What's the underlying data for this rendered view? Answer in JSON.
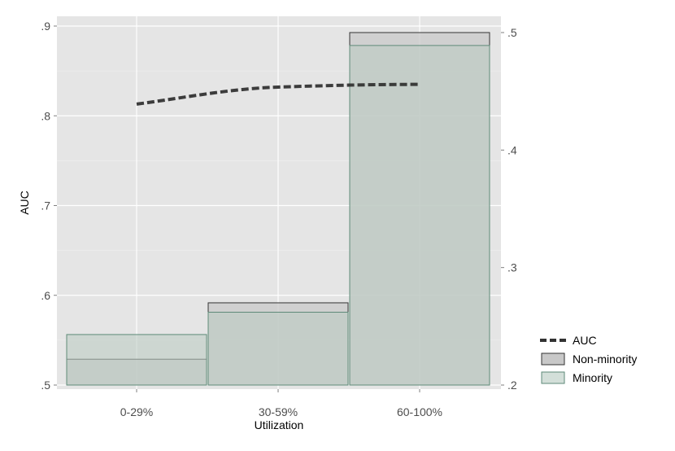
{
  "chart_data": {
    "type": "bar",
    "title": "",
    "xlabel": "Utilization",
    "ylabel": "AUC",
    "categories": [
      "0-29%",
      "30-59%",
      "60-100%"
    ],
    "y_left": {
      "range": [
        0.5,
        0.9
      ],
      "ticks": [
        ".5",
        ".6",
        ".7",
        ".8",
        ".9"
      ],
      "tick_values": [
        0.5,
        0.6,
        0.7,
        0.8,
        0.9
      ]
    },
    "y_right": {
      "range": [
        0.2,
        0.5
      ],
      "ticks": [
        ".2",
        ".3",
        ".4",
        ".5"
      ],
      "tick_values": [
        0.2,
        0.3,
        0.4,
        0.5
      ]
    },
    "series": [
      {
        "name": "AUC",
        "kind": "line",
        "axis": "left",
        "values": [
          0.813,
          0.832,
          0.835
        ],
        "color": "#333333",
        "style": "dashed"
      },
      {
        "name": "Non-minority",
        "kind": "bar",
        "axis": "right",
        "values": [
          0.222,
          0.27,
          0.5
        ],
        "fill": "#c8c8c8",
        "stroke": "#333333"
      },
      {
        "name": "Minority",
        "kind": "bar",
        "axis": "right",
        "values": [
          0.243,
          0.262,
          0.489
        ],
        "fill": "#bccbc3",
        "stroke": "#5e8a78"
      }
    ],
    "grid": true,
    "legend_position": "right"
  }
}
